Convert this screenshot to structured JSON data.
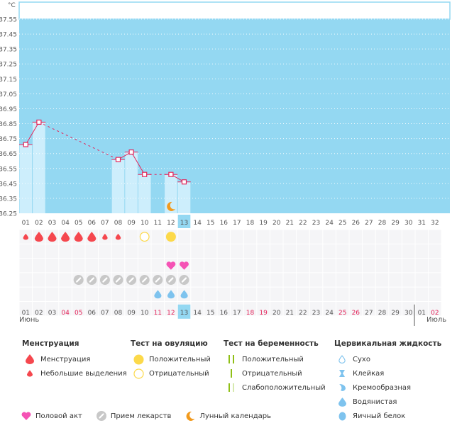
{
  "chart_data": {
    "type": "bar",
    "unit_label": "°C",
    "ylim": [
      36.25,
      37.55
    ],
    "yticks": [
      "37.55",
      "37.45",
      "37.35",
      "37.25",
      "37.15",
      "37.05",
      "36.95",
      "36.85",
      "36.75",
      "36.65",
      "36.55",
      "36.45",
      "36.35",
      "36.25"
    ],
    "grid": true,
    "categories": [
      "01",
      "02",
      "03",
      "04",
      "05",
      "06",
      "07",
      "08",
      "09",
      "10",
      "11",
      "12",
      "13",
      "14",
      "15",
      "16",
      "17",
      "18",
      "19",
      "20",
      "21",
      "22",
      "23",
      "24",
      "25",
      "26",
      "27",
      "28",
      "29",
      "30",
      "31",
      "32"
    ],
    "series": [
      {
        "name": "Базальная температура",
        "values": [
          36.71,
          36.86,
          null,
          null,
          null,
          null,
          null,
          36.61,
          36.66,
          36.51,
          null,
          36.51,
          36.46,
          null,
          null,
          null,
          null,
          null,
          null,
          null,
          null,
          null,
          null,
          null,
          null,
          null,
          null,
          null,
          null,
          null,
          null,
          null
        ]
      }
    ],
    "current_day": "13",
    "moon_day": "12"
  },
  "rows": {
    "menstruation": [
      "small",
      "big",
      "big",
      "big",
      "big",
      "big",
      "small",
      "small",
      null,
      null,
      null,
      null,
      null
    ],
    "ovulation_test": [
      null,
      null,
      null,
      null,
      null,
      null,
      null,
      null,
      null,
      "negative",
      null,
      "positive",
      null
    ],
    "pregnancy_test": [
      null,
      null,
      null,
      null,
      null,
      null,
      null,
      null,
      null,
      null,
      null,
      null,
      null
    ],
    "intercourse": [
      false,
      false,
      false,
      false,
      false,
      false,
      false,
      false,
      false,
      false,
      false,
      true,
      true
    ],
    "medication": [
      false,
      false,
      false,
      false,
      true,
      true,
      true,
      true,
      true,
      true,
      true,
      true,
      true
    ],
    "cervical_fluid": [
      null,
      null,
      null,
      null,
      null,
      null,
      null,
      null,
      null,
      null,
      "watery",
      "watery",
      "watery"
    ]
  },
  "date_axis": {
    "days": [
      "01",
      "02",
      "03",
      "04",
      "05",
      "06",
      "07",
      "08",
      "09",
      "10",
      "11",
      "12",
      "13",
      "14",
      "15",
      "16",
      "17",
      "18",
      "19",
      "20",
      "21",
      "22",
      "23",
      "24",
      "25",
      "26",
      "27",
      "28",
      "29",
      "30",
      "01",
      "02"
    ],
    "weekend_indices": [
      3,
      4,
      10,
      11,
      17,
      18,
      24,
      25,
      31
    ],
    "current_index": 12,
    "month_start": "Июнь",
    "month_next": "Июль",
    "month_break_index": 30
  },
  "legend": {
    "menstruation": {
      "title": "Менструация",
      "items": [
        "Менструация",
        "Небольшие выделения"
      ]
    },
    "ovulation": {
      "title": "Тест на овуляцию",
      "items": [
        "Положительный",
        "Отрицательный"
      ]
    },
    "pregnancy": {
      "title": "Тест на беременность",
      "items": [
        "Положительный",
        "Отрицательный",
        "Слабоположительный"
      ]
    },
    "cervical": {
      "title": "Цервикальная жидкость",
      "items": [
        "Сухо",
        "Клейкая",
        "Кремообразная",
        "Водянистая",
        "Яичный белок"
      ]
    },
    "other": [
      "Половой акт",
      "Прием лекарств",
      "Лунный календарь"
    ]
  },
  "colors": {
    "chart_bg": "#94d8f2",
    "bar": "#cdeefc",
    "line": "#e4245a",
    "blood": "#f5474e",
    "ovu": "#fcd94a",
    "heart": "#f553b5",
    "pill": "#c8c8c8",
    "drop": "#7ec3ee",
    "moon": "#f29a1d",
    "preg": "#8fbf16",
    "preg_weak": "#d6e9ae",
    "weekend": "#e4245a"
  }
}
